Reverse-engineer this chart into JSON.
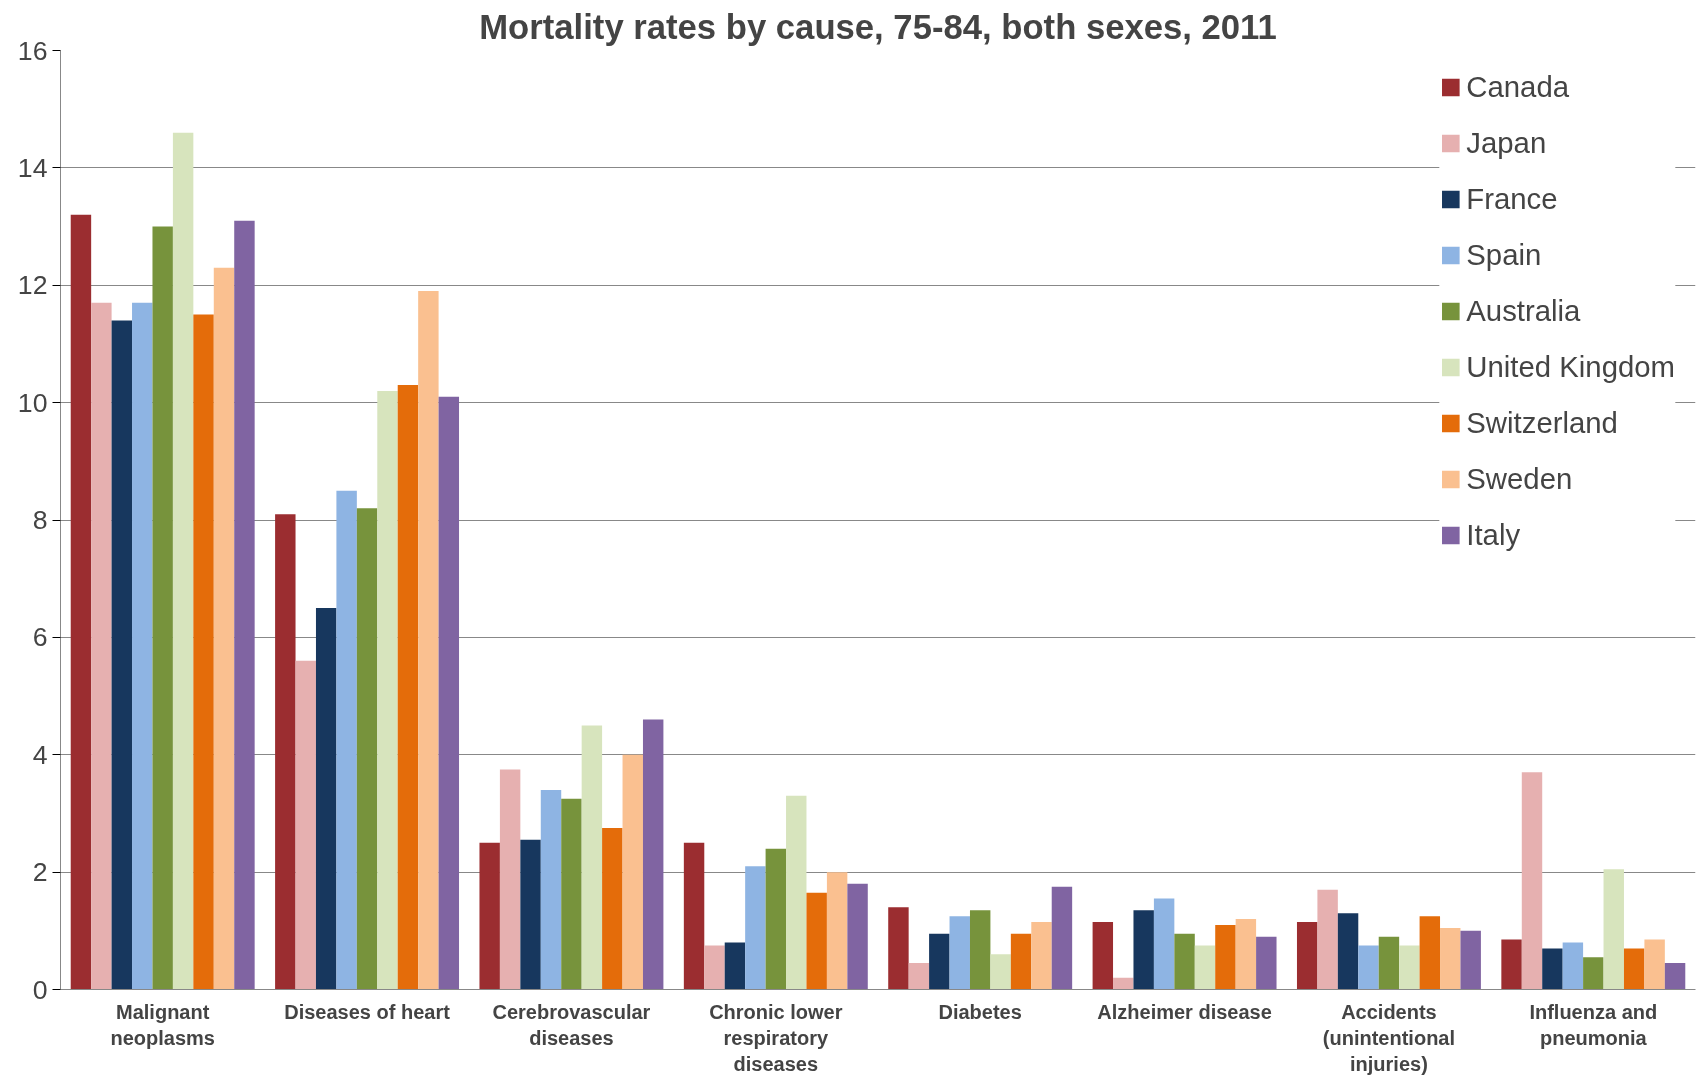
{
  "chart_data": {
    "type": "bar",
    "title": "Mortality rates by cause, 75-84, both sexes, 2011",
    "categories": [
      "Malignant\nneoplasms",
      "Diseases of heart",
      "Cerebrovascular\ndiseases",
      "Chronic lower\nrespiratory\ndiseases",
      "Diabetes",
      "Alzheimer disease",
      "Accidents\n(unintentional\ninjuries)",
      "Influenza and\npneumonia"
    ],
    "series": [
      {
        "name": "Canada",
        "color": "#9b2d30",
        "values": [
          13.2,
          8.1,
          2.5,
          2.5,
          1.4,
          1.15,
          1.15,
          0.85
        ]
      },
      {
        "name": "Japan",
        "color": "#e6b0b0",
        "values": [
          11.7,
          5.6,
          3.75,
          0.75,
          0.45,
          0.2,
          1.7,
          3.7
        ]
      },
      {
        "name": "France",
        "color": "#17375e",
        "values": [
          11.4,
          6.5,
          2.55,
          0.8,
          0.95,
          1.35,
          1.3,
          0.7
        ]
      },
      {
        "name": "Spain",
        "color": "#8eb4e3",
        "values": [
          11.7,
          8.5,
          3.4,
          2.1,
          1.25,
          1.55,
          0.75,
          0.8
        ]
      },
      {
        "name": "Australia",
        "color": "#77933c",
        "values": [
          13.0,
          8.2,
          3.25,
          2.4,
          1.35,
          0.95,
          0.9,
          0.55
        ]
      },
      {
        "name": "United Kingdom",
        "color": "#d7e4bd",
        "values": [
          14.6,
          10.2,
          4.5,
          3.3,
          0.6,
          0.75,
          0.75,
          2.05
        ]
      },
      {
        "name": "Switzerland",
        "color": "#e46c0a",
        "values": [
          11.5,
          10.3,
          2.75,
          1.65,
          0.95,
          1.1,
          1.25,
          0.7
        ]
      },
      {
        "name": "Sweden",
        "color": "#fac090",
        "values": [
          12.3,
          11.9,
          4.0,
          2.0,
          1.15,
          1.2,
          1.05,
          0.85
        ]
      },
      {
        "name": "Italy",
        "color": "#8064a2",
        "values": [
          13.1,
          10.1,
          4.6,
          1.8,
          1.75,
          0.9,
          1.0,
          0.45
        ]
      }
    ],
    "ylim": [
      0,
      16
    ],
    "yticks": [
      0,
      2,
      4,
      6,
      8,
      10,
      12,
      14,
      16
    ],
    "grid": "y",
    "legend": "top right"
  }
}
